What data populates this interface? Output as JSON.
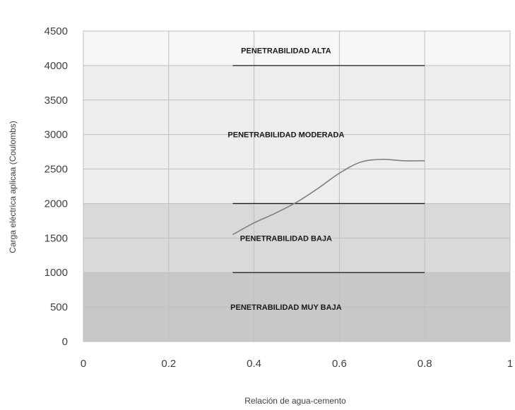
{
  "chart_data": {
    "type": "line",
    "title": "",
    "xlabel": "Relación de agua-cemento",
    "ylabel": "Carga eléctrica aplicaa (Coulombs)",
    "xlim": [
      0,
      1
    ],
    "ylim": [
      0,
      4500
    ],
    "x_ticks": [
      0,
      0.2,
      0.4,
      0.6,
      0.8,
      1
    ],
    "x_tick_labels": [
      "0",
      "0.2",
      "0.4",
      "0.6",
      "0.8",
      "1"
    ],
    "y_ticks": [
      0,
      500,
      1000,
      1500,
      2000,
      2500,
      3000,
      3500,
      4000,
      4500
    ],
    "y_tick_labels": [
      "0",
      "500",
      "1000",
      "1500",
      "2000",
      "2500",
      "3000",
      "3500",
      "4000",
      "4500"
    ],
    "grid": true,
    "legend": "none",
    "series": [
      {
        "x": [
          0.35,
          0.4,
          0.45,
          0.5,
          0.55,
          0.6,
          0.65,
          0.7,
          0.75,
          0.8
        ],
        "values": [
          1550,
          1720,
          1860,
          2020,
          2220,
          2440,
          2600,
          2640,
          2620,
          2620
        ]
      }
    ],
    "bands": [
      {
        "label": "PENETRABILIDAD  MUY BAJA",
        "y_range": [
          0,
          1000
        ],
        "color": "#c8c8c8",
        "label_x": 0.475,
        "label_y": 500
      },
      {
        "label": "PENETRABILIDAD BAJA",
        "y_range": [
          1000,
          2000
        ],
        "color": "#d9d9d9",
        "label_x": 0.475,
        "label_y": 1500
      },
      {
        "label": "PENETRABILIDAD  MODERADA",
        "y_range": [
          2000,
          4000
        ],
        "color": "#ededed",
        "label_x": 0.475,
        "label_y": 3000
      },
      {
        "label": "PENETRABILIDAD  ALTA",
        "y_range": [
          4000,
          4500
        ],
        "color": "#f7f7f7",
        "label_x": 0.475,
        "label_y": 4220
      }
    ],
    "boundary_lines": [
      {
        "y": 1000,
        "x_range": [
          0.35,
          0.8
        ]
      },
      {
        "y": 2000,
        "x_range": [
          0.35,
          0.8
        ]
      },
      {
        "y": 4000,
        "x_range": [
          0.35,
          0.8
        ]
      }
    ],
    "colors": {
      "line": "#808080",
      "boundary": "#1a1a1a",
      "grid": "#bfbfbf"
    }
  }
}
